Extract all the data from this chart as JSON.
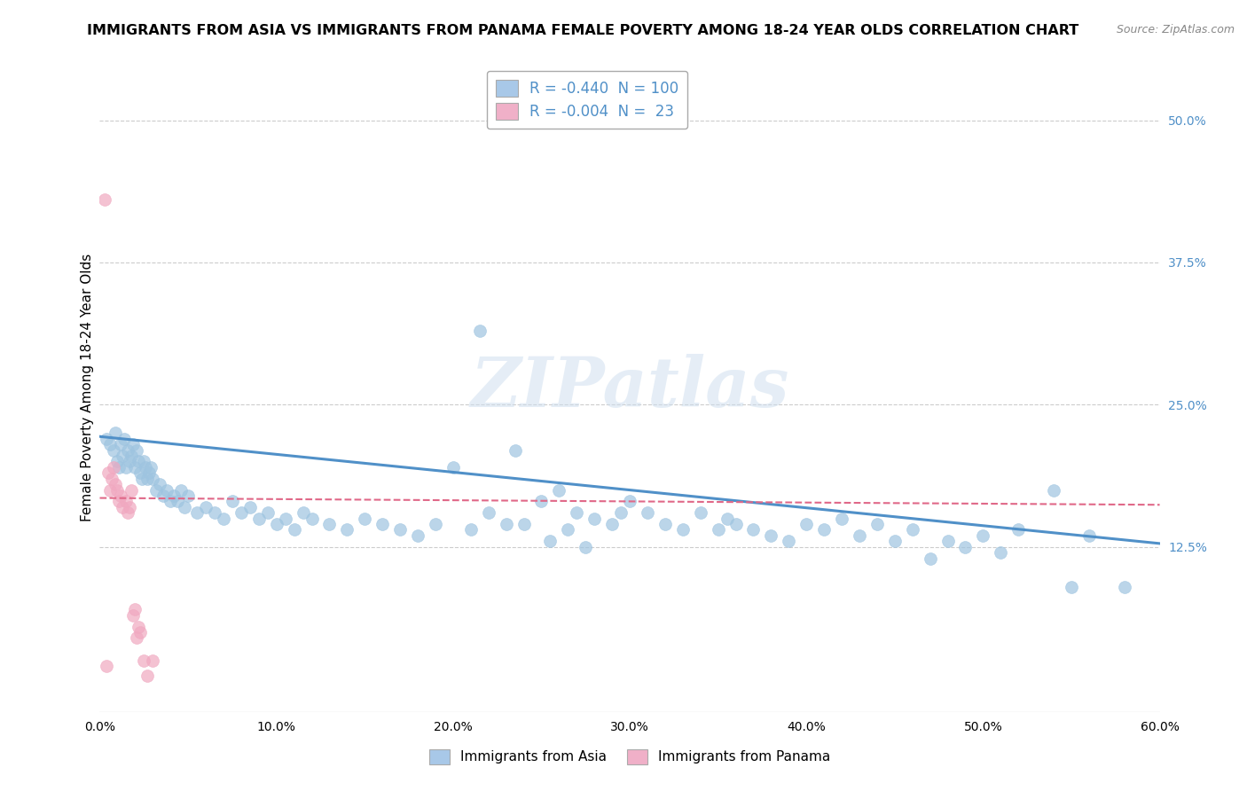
{
  "title": "IMMIGRANTS FROM ASIA VS IMMIGRANTS FROM PANAMA FEMALE POVERTY AMONG 18-24 YEAR OLDS CORRELATION CHART",
  "source": "Source: ZipAtlas.com",
  "ylabel": "Female Poverty Among 18-24 Year Olds",
  "xlim": [
    0.0,
    0.6
  ],
  "ylim": [
    -0.02,
    0.55
  ],
  "xticks": [
    0.0,
    0.1,
    0.2,
    0.3,
    0.4,
    0.5,
    0.6
  ],
  "xticklabels": [
    "0.0%",
    "10.0%",
    "20.0%",
    "30.0%",
    "40.0%",
    "50.0%",
    "60.0%"
  ],
  "yticks_right": [
    0.125,
    0.25,
    0.375,
    0.5
  ],
  "yticklabels_right": [
    "12.5%",
    "25.0%",
    "37.5%",
    "50.0%"
  ],
  "grid_color": "#cccccc",
  "background_color": "#ffffff",
  "watermark": "ZIPatlas",
  "legend_top": [
    {
      "label": "R = -0.440  N = 100",
      "color": "#a8c8e8"
    },
    {
      "label": "R = -0.004  N =  23",
      "color": "#f0b0c8"
    }
  ],
  "legend_bottom": [
    {
      "label": "Immigrants from Asia",
      "color": "#a8c8e8"
    },
    {
      "label": "Immigrants from Panama",
      "color": "#f0b0c8"
    }
  ],
  "asia_scatter_x": [
    0.004,
    0.006,
    0.008,
    0.009,
    0.01,
    0.011,
    0.012,
    0.013,
    0.014,
    0.015,
    0.016,
    0.017,
    0.018,
    0.019,
    0.02,
    0.021,
    0.022,
    0.023,
    0.024,
    0.025,
    0.026,
    0.027,
    0.028,
    0.029,
    0.03,
    0.032,
    0.034,
    0.036,
    0.038,
    0.04,
    0.042,
    0.044,
    0.046,
    0.048,
    0.05,
    0.055,
    0.06,
    0.065,
    0.07,
    0.075,
    0.08,
    0.085,
    0.09,
    0.095,
    0.1,
    0.105,
    0.11,
    0.115,
    0.12,
    0.13,
    0.14,
    0.15,
    0.16,
    0.17,
    0.18,
    0.19,
    0.2,
    0.21,
    0.215,
    0.22,
    0.23,
    0.235,
    0.24,
    0.25,
    0.255,
    0.26,
    0.265,
    0.27,
    0.275,
    0.28,
    0.29,
    0.295,
    0.3,
    0.31,
    0.32,
    0.33,
    0.34,
    0.35,
    0.355,
    0.36,
    0.37,
    0.38,
    0.39,
    0.4,
    0.41,
    0.42,
    0.43,
    0.44,
    0.45,
    0.46,
    0.47,
    0.48,
    0.49,
    0.5,
    0.51,
    0.52,
    0.54,
    0.55,
    0.56,
    0.58
  ],
  "asia_scatter_y": [
    0.22,
    0.215,
    0.21,
    0.225,
    0.2,
    0.195,
    0.215,
    0.205,
    0.22,
    0.195,
    0.21,
    0.2,
    0.205,
    0.215,
    0.195,
    0.21,
    0.2,
    0.19,
    0.185,
    0.2,
    0.195,
    0.185,
    0.19,
    0.195,
    0.185,
    0.175,
    0.18,
    0.17,
    0.175,
    0.165,
    0.17,
    0.165,
    0.175,
    0.16,
    0.17,
    0.155,
    0.16,
    0.155,
    0.15,
    0.165,
    0.155,
    0.16,
    0.15,
    0.155,
    0.145,
    0.15,
    0.14,
    0.155,
    0.15,
    0.145,
    0.14,
    0.15,
    0.145,
    0.14,
    0.135,
    0.145,
    0.195,
    0.14,
    0.315,
    0.155,
    0.145,
    0.21,
    0.145,
    0.165,
    0.13,
    0.175,
    0.14,
    0.155,
    0.125,
    0.15,
    0.145,
    0.155,
    0.165,
    0.155,
    0.145,
    0.14,
    0.155,
    0.14,
    0.15,
    0.145,
    0.14,
    0.135,
    0.13,
    0.145,
    0.14,
    0.15,
    0.135,
    0.145,
    0.13,
    0.14,
    0.115,
    0.13,
    0.125,
    0.135,
    0.12,
    0.14,
    0.175,
    0.09,
    0.135,
    0.09
  ],
  "panama_scatter_x": [
    0.003,
    0.004,
    0.005,
    0.006,
    0.007,
    0.008,
    0.009,
    0.01,
    0.011,
    0.012,
    0.013,
    0.015,
    0.016,
    0.017,
    0.018,
    0.019,
    0.02,
    0.021,
    0.022,
    0.023,
    0.025,
    0.027,
    0.03
  ],
  "panama_scatter_y": [
    0.43,
    0.02,
    0.19,
    0.175,
    0.185,
    0.195,
    0.18,
    0.175,
    0.165,
    0.17,
    0.16,
    0.165,
    0.155,
    0.16,
    0.175,
    0.065,
    0.07,
    0.045,
    0.055,
    0.05,
    0.025,
    0.012,
    0.025
  ],
  "asia_line_color": "#5090c8",
  "panama_line_color": "#e06888",
  "asia_line_x": [
    0.0,
    0.6
  ],
  "asia_line_y": [
    0.222,
    0.128
  ],
  "panama_line_x": [
    0.0,
    0.6
  ],
  "panama_line_y": [
    0.168,
    0.162
  ],
  "asia_dot_color": "#9ec4e0",
  "panama_dot_color": "#f0a8c0",
  "title_fontsize": 11.5,
  "axis_fontsize": 11,
  "tick_fontsize": 10,
  "right_tick_color": "#5090c8"
}
